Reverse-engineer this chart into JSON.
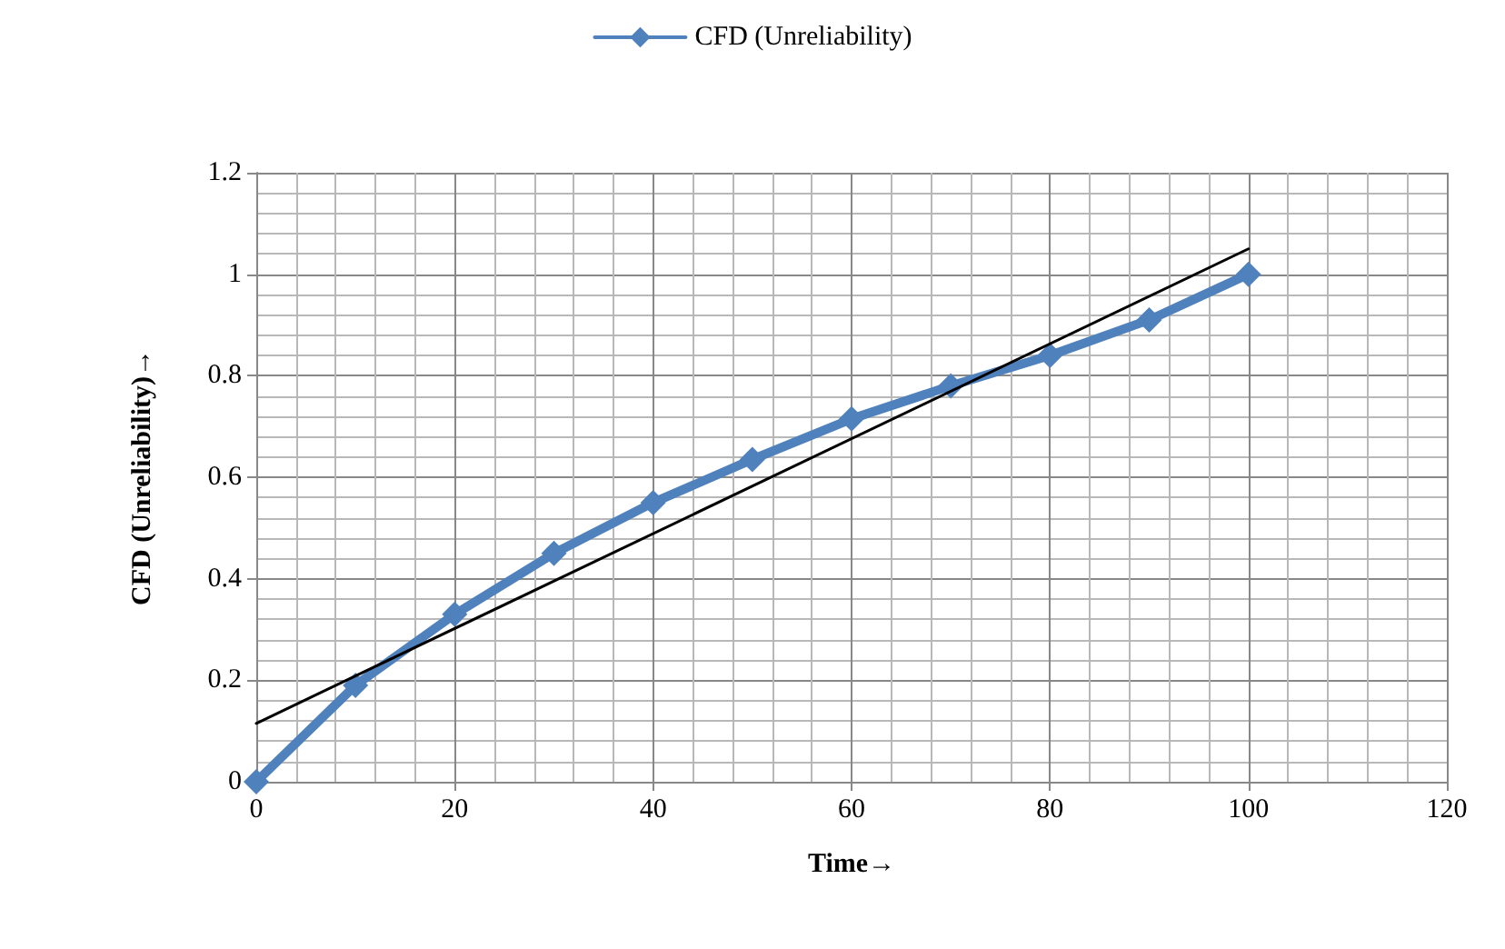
{
  "chart_data": {
    "type": "line",
    "xlabel": "Time→",
    "ylabel": "CFD (Unreliability)→",
    "x": [
      0,
      10,
      20,
      30,
      40,
      50,
      60,
      70,
      80,
      90,
      100
    ],
    "series": [
      {
        "name": "CFD (Unreliability)",
        "color": "#4f81bd",
        "marker": "diamond",
        "values": [
          0,
          0.19,
          0.33,
          0.45,
          0.55,
          0.635,
          0.715,
          0.78,
          0.84,
          0.91,
          1.0
        ]
      },
      {
        "x": [
          0,
          100
        ],
        "color": "#000000",
        "marker": "none",
        "values": [
          0.115,
          1.05
        ]
      }
    ],
    "xlim": [
      0,
      120
    ],
    "xticks": [
      0,
      20,
      40,
      60,
      80,
      100,
      120
    ],
    "ylim": [
      0,
      1.2
    ],
    "yticks": [
      0,
      0.2,
      0.4,
      0.6,
      0.8,
      1,
      1.2
    ],
    "grid": true,
    "legend": "top",
    "line_style": "solid"
  }
}
